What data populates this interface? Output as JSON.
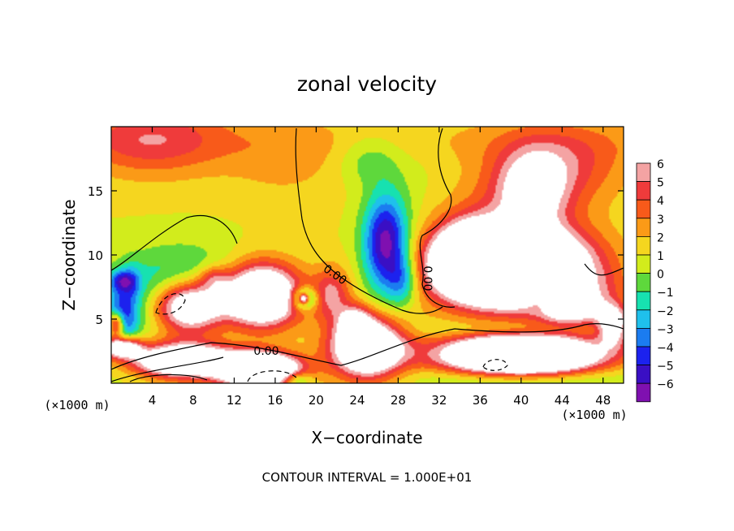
{
  "chart_data": {
    "type": "heatmap",
    "title": "zonal velocity",
    "xlabel": "X−coordinate",
    "ylabel": "Z−coordinate",
    "x_unit_label": "(×1000 m)",
    "z_unit_label": "(×1000 m)",
    "xlim": [
      0,
      50
    ],
    "ylim": [
      0,
      20
    ],
    "x_ticks": [
      4,
      8,
      12,
      16,
      20,
      24,
      28,
      32,
      36,
      40,
      44,
      48
    ],
    "y_ticks": [
      5,
      10,
      15
    ],
    "colorbar": {
      "levels": [
        6,
        5,
        4,
        3,
        2,
        1,
        0,
        -1,
        -2,
        -3,
        -4,
        -5,
        -6
      ],
      "labels": [
        "6",
        "5",
        "4",
        "3",
        "2",
        "1",
        "0",
        "−1",
        "−2",
        "−3",
        "−4",
        "−5",
        "−6"
      ],
      "colors": [
        "#f4a3a3",
        "#ef3b3b",
        "#f85a1a",
        "#fb9a17",
        "#f5d61f",
        "#d2ec1c",
        "#5ed83c",
        "#17e1b0",
        "#1fc0ec",
        "#1b7cf0",
        "#1c22ee",
        "#3a0fc4",
        "#7f10b0"
      ]
    },
    "contour_labels": [
      "0.00",
      "0.00",
      "0.00"
    ],
    "contour_interval_text": "CONTOUR INTERVAL = 1.000E+01",
    "background_value": 1.5,
    "blobs": [
      {
        "x": 4,
        "z": 19,
        "rx": 7,
        "rz": 3,
        "v": 3.2
      },
      {
        "x": 17,
        "z": 17,
        "rx": 6,
        "rz": 3,
        "v": 1.2
      },
      {
        "x": 41,
        "z": 15,
        "rx": 3.5,
        "rz": 3,
        "v": 5
      },
      {
        "x": 44,
        "z": 17,
        "rx": 6,
        "rz": 3,
        "v": 3
      },
      {
        "x": 38,
        "z": 12,
        "rx": 8,
        "rz": 5,
        "v": 2
      },
      {
        "x": 30,
        "z": 15,
        "rx": 4,
        "rz": 5,
        "v": -0.6
      },
      {
        "x": 25,
        "z": 17.5,
        "rx": 3,
        "rz": 2,
        "v": -1.8
      },
      {
        "x": 26.8,
        "z": 10.8,
        "rx": 2.2,
        "rz": 3.8,
        "v": -8
      },
      {
        "x": 28.5,
        "z": 8,
        "rx": 1.5,
        "rz": 2,
        "v": -3.5
      },
      {
        "x": 7,
        "z": 6.5,
        "rx": 6,
        "rz": 3.2,
        "v": -7
      },
      {
        "x": 7.5,
        "z": 6,
        "rx": 3.8,
        "rz": 2.2,
        "v": 14
      },
      {
        "x": 1,
        "z": 5,
        "rx": 1.5,
        "rz": 2.2,
        "v": -5
      },
      {
        "x": 0.5,
        "z": 4.6,
        "rx": 0.8,
        "rz": 1,
        "v": 8
      },
      {
        "x": 1,
        "z": 2.8,
        "rx": 1.8,
        "rz": 0.8,
        "v": 9
      },
      {
        "x": 14.5,
        "z": 6.8,
        "rx": 3.8,
        "rz": 2.4,
        "v": 12
      },
      {
        "x": 18.8,
        "z": 6.6,
        "rx": 1.2,
        "rz": 0.8,
        "v": -7
      },
      {
        "x": 18.8,
        "z": 6.6,
        "rx": 0.5,
        "rz": 0.4,
        "v": 10
      },
      {
        "x": 21.5,
        "z": 7,
        "rx": 1.8,
        "rz": 2,
        "v": 4
      },
      {
        "x": 25,
        "z": 2.8,
        "rx": 3.5,
        "rz": 2.3,
        "v": 11
      },
      {
        "x": 23.8,
        "z": 4.8,
        "rx": 1.6,
        "rz": 1.3,
        "v": 4
      },
      {
        "x": 7,
        "z": 1.5,
        "rx": 5,
        "rz": 1.6,
        "v": 12
      },
      {
        "x": 7,
        "z": 0.5,
        "rx": 6,
        "rz": 1,
        "v": -4
      },
      {
        "x": 14.5,
        "z": 1,
        "rx": 3.8,
        "rz": 1.3,
        "v": 14
      },
      {
        "x": 18,
        "z": 0.3,
        "rx": 1.5,
        "rz": 0.6,
        "v": -4
      },
      {
        "x": 39,
        "z": 9,
        "rx": 7,
        "rz": 2.8,
        "v": 17
      },
      {
        "x": 35,
        "z": 10,
        "rx": 3,
        "rz": 2.5,
        "v": 6
      },
      {
        "x": 42,
        "z": 6.8,
        "rx": 2,
        "rz": 1.2,
        "v": -4
      },
      {
        "x": 45,
        "z": 5.8,
        "rx": 3.5,
        "rz": 1.5,
        "v": 6
      },
      {
        "x": 48,
        "z": 7.6,
        "rx": 2.5,
        "rz": 1.4,
        "v": 1
      },
      {
        "x": 40,
        "z": 2,
        "rx": 7.5,
        "rz": 1.7,
        "v": 16
      },
      {
        "x": 40,
        "z": 0.5,
        "rx": 9,
        "rz": 1.2,
        "v": -5
      },
      {
        "x": 49,
        "z": 4.5,
        "rx": 1.5,
        "rz": 1.5,
        "v": 7
      },
      {
        "x": 40,
        "z": 4.2,
        "rx": 10,
        "rz": 0.8,
        "v": -2
      },
      {
        "x": 1,
        "z": 8,
        "rx": 1.2,
        "rz": 0.8,
        "v": -4
      },
      {
        "x": 2,
        "z": 7.8,
        "rx": 1,
        "rz": 1.5,
        "v": -2
      },
      {
        "x": 10,
        "z": 8.2,
        "rx": 1.5,
        "rz": 1,
        "v": 3
      }
    ]
  }
}
